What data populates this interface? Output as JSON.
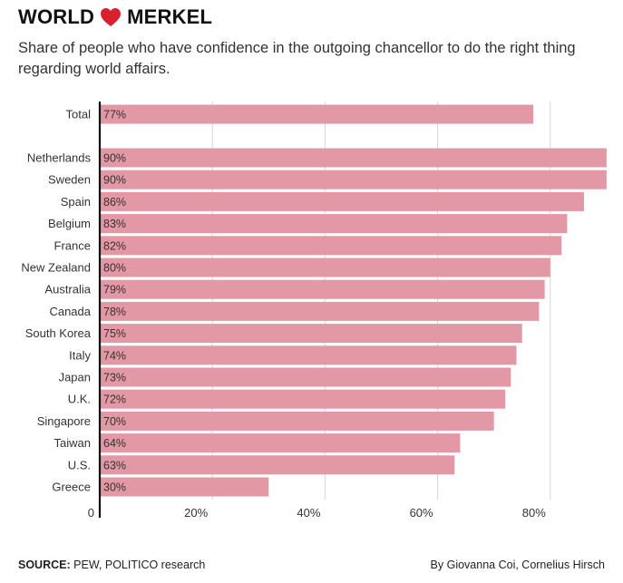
{
  "header": {
    "title_left": "WORLD",
    "title_right": "MERKEL",
    "heart_icon": "heart-icon",
    "heart_color": "#d9202f",
    "subtitle": "Share of people who have confidence in the outgoing chancellor to do the right thing regarding world affairs."
  },
  "footer": {
    "source_label": "SOURCE:",
    "source_text": "PEW, POLITICO research",
    "byline": "By Giovanna Coi, Cornelius Hirsch"
  },
  "colors": {
    "bar": "#e398a5",
    "grid": "#d6d6d6",
    "axis": "#111111",
    "text": "#333333"
  },
  "chart_data": {
    "type": "bar",
    "orientation": "horizontal",
    "title": "WORLD ❤ MERKEL",
    "xlabel": "",
    "ylabel": "",
    "xlim": [
      0,
      90
    ],
    "x_ticks": [
      {
        "value": 0,
        "label": "0"
      },
      {
        "value": 20,
        "label": "20%"
      },
      {
        "value": 40,
        "label": "40%"
      },
      {
        "value": 60,
        "label": "60%"
      },
      {
        "value": 80,
        "label": "80%"
      }
    ],
    "grid": true,
    "groups": [
      {
        "name": "total",
        "items": [
          {
            "category": "Total",
            "value": 77,
            "label": "77%"
          }
        ]
      },
      {
        "name": "countries",
        "items": [
          {
            "category": "Netherlands",
            "value": 90,
            "label": "90%"
          },
          {
            "category": "Sweden",
            "value": 90,
            "label": "90%"
          },
          {
            "category": "Spain",
            "value": 86,
            "label": "86%"
          },
          {
            "category": "Belgium",
            "value": 83,
            "label": "83%"
          },
          {
            "category": "France",
            "value": 82,
            "label": "82%"
          },
          {
            "category": "New Zealand",
            "value": 80,
            "label": "80%"
          },
          {
            "category": "Australia",
            "value": 79,
            "label": "79%"
          },
          {
            "category": "Canada",
            "value": 78,
            "label": "78%"
          },
          {
            "category": "South Korea",
            "value": 75,
            "label": "75%"
          },
          {
            "category": "Italy",
            "value": 74,
            "label": "74%"
          },
          {
            "category": "Japan",
            "value": 73,
            "label": "73%"
          },
          {
            "category": "U.K.",
            "value": 72,
            "label": "72%"
          },
          {
            "category": "Singapore",
            "value": 70,
            "label": "70%"
          },
          {
            "category": "Taiwan",
            "value": 64,
            "label": "64%"
          },
          {
            "category": "U.S.",
            "value": 63,
            "label": "63%"
          },
          {
            "category": "Greece",
            "value": 30,
            "label": "30%"
          }
        ]
      }
    ]
  }
}
